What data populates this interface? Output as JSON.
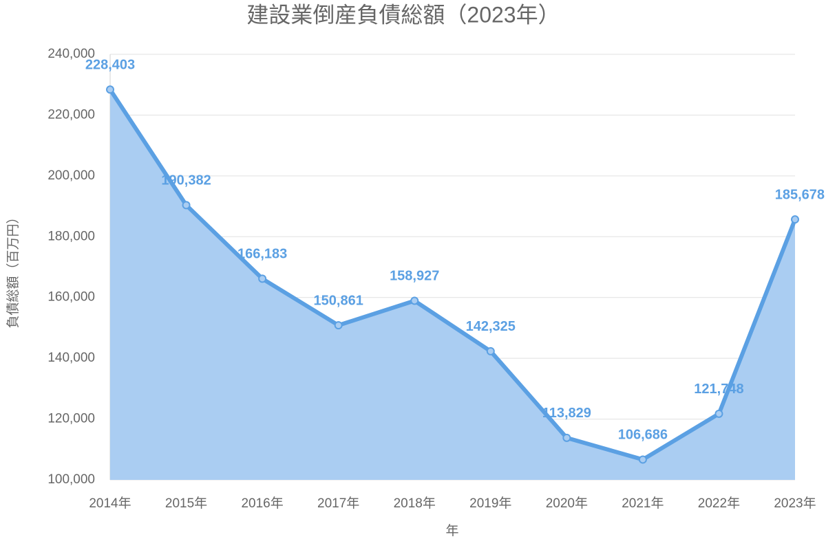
{
  "chart_data": {
    "type": "area",
    "title": "建設業倒産負債総額（2023年）",
    "xlabel": "年",
    "ylabel": "負債総額（百万円）",
    "categories": [
      "2014年",
      "2015年",
      "2016年",
      "2017年",
      "2018年",
      "2019年",
      "2020年",
      "2021年",
      "2022年",
      "2023年"
    ],
    "values": [
      228403,
      190382,
      166183,
      150861,
      158927,
      142325,
      113829,
      106686,
      121748,
      185678
    ],
    "value_labels": [
      "228,403",
      "190,382",
      "166,183",
      "150,861",
      "158,927",
      "142,325",
      "113,829",
      "106,686",
      "121,748",
      "185,678"
    ],
    "color": "#5ba0e3",
    "fill_color": "#aacdf2",
    "ylim": [
      100000,
      240000
    ],
    "yticks": [
      {
        "value": 100000,
        "label": "100,000"
      },
      {
        "value": 120000,
        "label": "120,000"
      },
      {
        "value": 140000,
        "label": "140,000"
      },
      {
        "value": 160000,
        "label": "160,000"
      },
      {
        "value": 180000,
        "label": "180,000"
      },
      {
        "value": 200000,
        "label": "200,000"
      },
      {
        "value": 220000,
        "label": "220,000"
      },
      {
        "value": 240000,
        "label": "240,000"
      }
    ],
    "grid": true
  }
}
